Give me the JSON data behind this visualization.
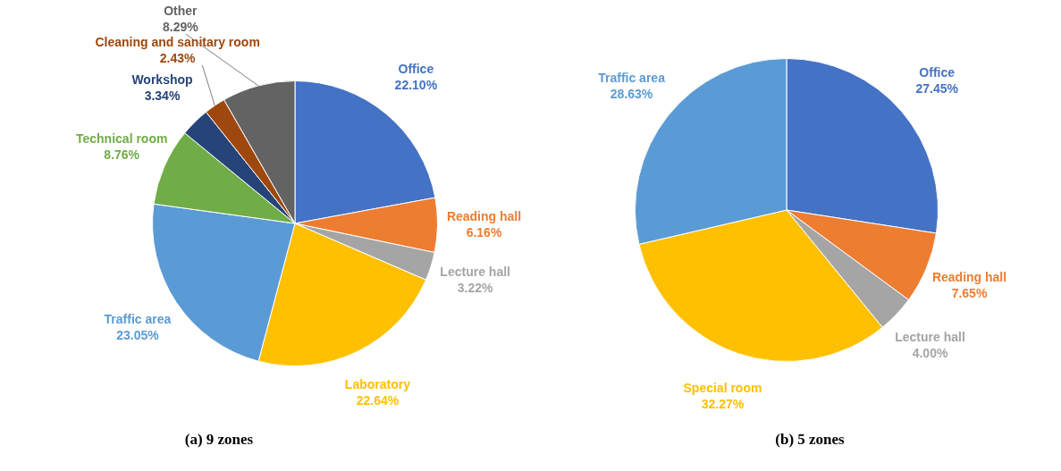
{
  "chart_data": [
    {
      "type": "pie",
      "title": "(a) 9 zones",
      "legend": false,
      "categories": [
        "Office",
        "Reading hall",
        "Lecture hall",
        "Laboratory",
        "Traffic area",
        "Technical room",
        "Workshop",
        "Cleaning and sanitary room",
        "Other"
      ],
      "values": [
        22.1,
        6.16,
        3.22,
        22.64,
        23.05,
        8.76,
        3.34,
        2.43,
        8.29
      ],
      "value_labels": [
        "22.10%",
        "6.16%",
        "3.22%",
        "22.64%",
        "23.05%",
        "8.76%",
        "3.34%",
        "2.43%",
        "8.29%"
      ],
      "colors": [
        "#4472c4",
        "#ed7d31",
        "#a5a5a5",
        "#ffc000",
        "#5b9bd5",
        "#70ad47",
        "#264478",
        "#9e480e",
        "#636363"
      ]
    },
    {
      "type": "pie",
      "title": "(b) 5 zones",
      "legend": false,
      "categories": [
        "Office",
        "Reading hall",
        "Lecture hall",
        "Special room",
        "Traffic area"
      ],
      "values": [
        27.45,
        7.65,
        4.0,
        32.27,
        28.63
      ],
      "value_labels": [
        "27.45%",
        "7.65%",
        "4.00%",
        "32.27%",
        "28.63%"
      ],
      "colors": [
        "#4472c4",
        "#ed7d31",
        "#a5a5a5",
        "#ffc000",
        "#5b9bd5"
      ]
    }
  ]
}
